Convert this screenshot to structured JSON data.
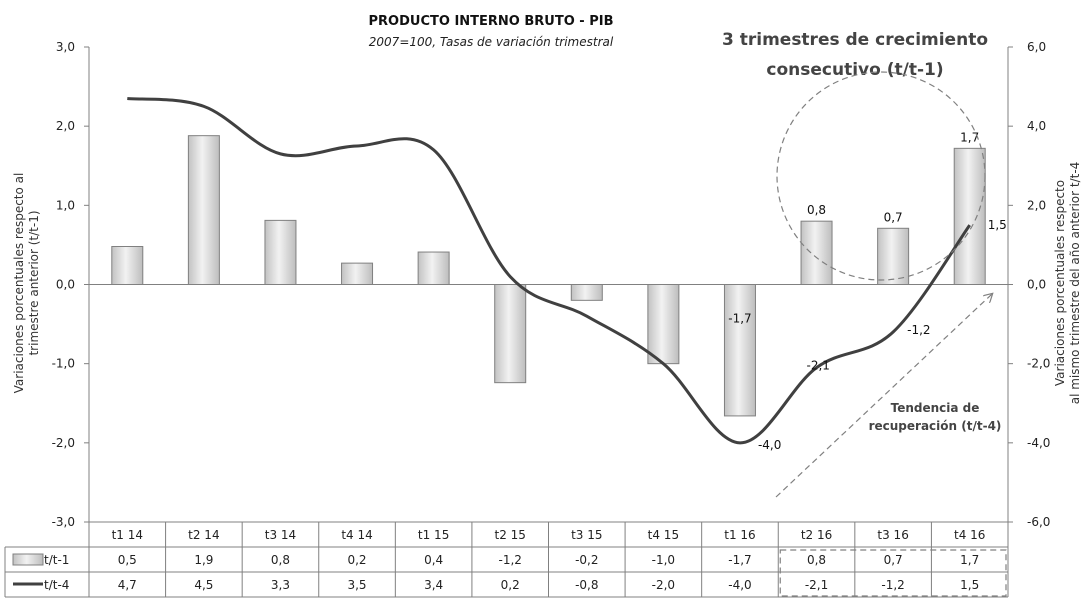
{
  "chart_data": {
    "type": "bar",
    "title": "PRODUCTO INTERNO BRUTO - PIB",
    "subtitle": "2007=100, Tasas de variación trimestral",
    "categories": [
      "t1 14",
      "t2 14",
      "t3 14",
      "t4 14",
      "t1 15",
      "t2 15",
      "t3 15",
      "t4 15",
      "t1 16",
      "t2 16",
      "t3 16",
      "t4 16"
    ],
    "series": [
      {
        "name": "t/t-1",
        "kind": "bar",
        "axis": "left",
        "values": [
          0.5,
          1.9,
          0.8,
          0.2,
          0.4,
          -1.2,
          -0.2,
          -1.0,
          -1.7,
          0.8,
          0.7,
          1.7
        ],
        "display": [
          "0,5",
          "1,9",
          "0,8",
          "0,2",
          "0,4",
          "-1,2",
          "-0,2",
          "-1,0",
          "-1,7",
          "0,8",
          "0,7",
          "1,7"
        ],
        "bar_heights": [
          0.48,
          1.88,
          0.81,
          0.27,
          0.41,
          -1.24,
          -0.2,
          -1.0,
          -1.66,
          0.8,
          0.71,
          1.72
        ]
      },
      {
        "name": "t/t-4",
        "kind": "line",
        "axis": "right",
        "values": [
          4.7,
          4.5,
          3.3,
          3.5,
          3.4,
          0.2,
          -0.8,
          -2.0,
          -4.0,
          -2.1,
          -1.2,
          1.5
        ],
        "display": [
          "4,7",
          "4,5",
          "3,3",
          "3,5",
          "3,4",
          "0,2",
          "-0,8",
          "-2,0",
          "-4,0",
          "-2,1",
          "-1,2",
          "1,5"
        ]
      }
    ],
    "left_axis": {
      "ylim": [
        -3,
        3
      ],
      "ticks": [
        "3,0",
        "2,0",
        "1,0",
        "0,0",
        "-1,0",
        "-2,0",
        "-3,0"
      ],
      "label": "Variaciones porcentuales respecto al trimestre anterior (t/t-1)",
      "label_lines": [
        "Variaciones porcentuales respecto al",
        "trimestre anterior (t/t-1)"
      ]
    },
    "right_axis": {
      "ylim": [
        -6,
        6
      ],
      "ticks": [
        "6,0",
        "4,0",
        "2,0",
        "0,0",
        "-2,0",
        "-4,0",
        "-6,0"
      ],
      "label": "Variaciones porcentuales respecto al mismo trimestre del año anterior t/t-4",
      "label_lines": [
        "Variaciones porcentuales respecto",
        "al mismo trimestre del año anterior t/t-4"
      ]
    },
    "data_labels": [
      {
        "series": "t/t-1",
        "index": 8,
        "text": "-1,7"
      },
      {
        "series": "t/t-1",
        "index": 9,
        "text": "0,8"
      },
      {
        "series": "t/t-1",
        "index": 10,
        "text": "0,7"
      },
      {
        "series": "t/t-1",
        "index": 11,
        "text": "1,7"
      },
      {
        "series": "t/t-4",
        "index": 8,
        "text": "-4,0"
      },
      {
        "series": "t/t-4",
        "index": 9,
        "text": "-2,1"
      },
      {
        "series": "t/t-4",
        "index": 10,
        "text": "-1,2"
      },
      {
        "series": "t/t-4",
        "index": 11,
        "text": "1,5"
      }
    ],
    "annotations": {
      "highlight_lines": [
        "3 trimestres de crecimiento",
        "consecutivo (t/t-1)"
      ],
      "trend_lines": [
        "Tendencia de",
        "recuperación (t/t-4)"
      ]
    },
    "legend": "data-table",
    "grid": false
  },
  "colors": {
    "bar_fill_light": "#f4f4f4",
    "bar_fill_dark": "#bdbdbd",
    "bar_stroke": "#808080",
    "line": "#404040",
    "axis": "#808080",
    "annotation": "#808080"
  }
}
